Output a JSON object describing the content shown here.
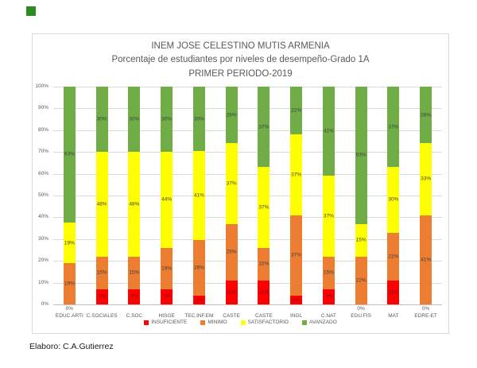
{
  "page": {
    "author_note": "Elaboro: C.A.Gutierrez"
  },
  "decor": {
    "corner_square_color": "#2E8B22"
  },
  "chart_data": {
    "type": "bar",
    "stacked": true,
    "title_lines": [
      "INEM JOSE CELESTINO MUTIS ARMENIA",
      "Porcentaje de estudiantes por niveles de desempeño-Grado 1A",
      "PRIMER PERIODO-2019"
    ],
    "categories": [
      "EDUC.ARTI",
      "C.SOCIALES",
      "C.SOC",
      "HISGE",
      "TEC.INF.EM",
      "CASTE",
      "CASTE",
      "INGL",
      "C.NAT",
      "EDU.FIS",
      "MAT",
      "EDRE-ET"
    ],
    "series": [
      {
        "name": "INSUFICIENTE",
        "color": "#FF0000",
        "label_color": "#7A1010",
        "values": [
          0,
          7,
          7,
          7,
          4,
          11,
          11,
          4,
          7,
          0,
          11,
          0
        ]
      },
      {
        "name": "MINIMO",
        "color": "#ED7D31",
        "label_color": "#3F3F3F",
        "values": [
          19,
          15,
          15,
          19,
          26,
          26,
          15,
          37,
          15,
          22,
          22,
          41
        ]
      },
      {
        "name": "SATISFACTORIO",
        "color": "#FFFF00",
        "label_color": "#3F3F3F",
        "values": [
          19,
          48,
          48,
          44,
          41,
          37,
          37,
          37,
          37,
          15,
          30,
          33
        ]
      },
      {
        "name": "AVANZADO",
        "color": "#70AD47",
        "label_color": "#3F3F3F",
        "values": [
          63,
          30,
          30,
          30,
          30,
          26,
          37,
          22,
          41,
          63,
          37,
          26
        ]
      }
    ],
    "data_label_suffix": "%",
    "y_ticks": [
      "0%",
      "10%",
      "20%",
      "30%",
      "40%",
      "50%",
      "60%",
      "70%",
      "80%",
      "90%",
      "100%"
    ],
    "ylim": [
      0,
      100
    ],
    "grid": true,
    "legend_position": "bottom"
  }
}
